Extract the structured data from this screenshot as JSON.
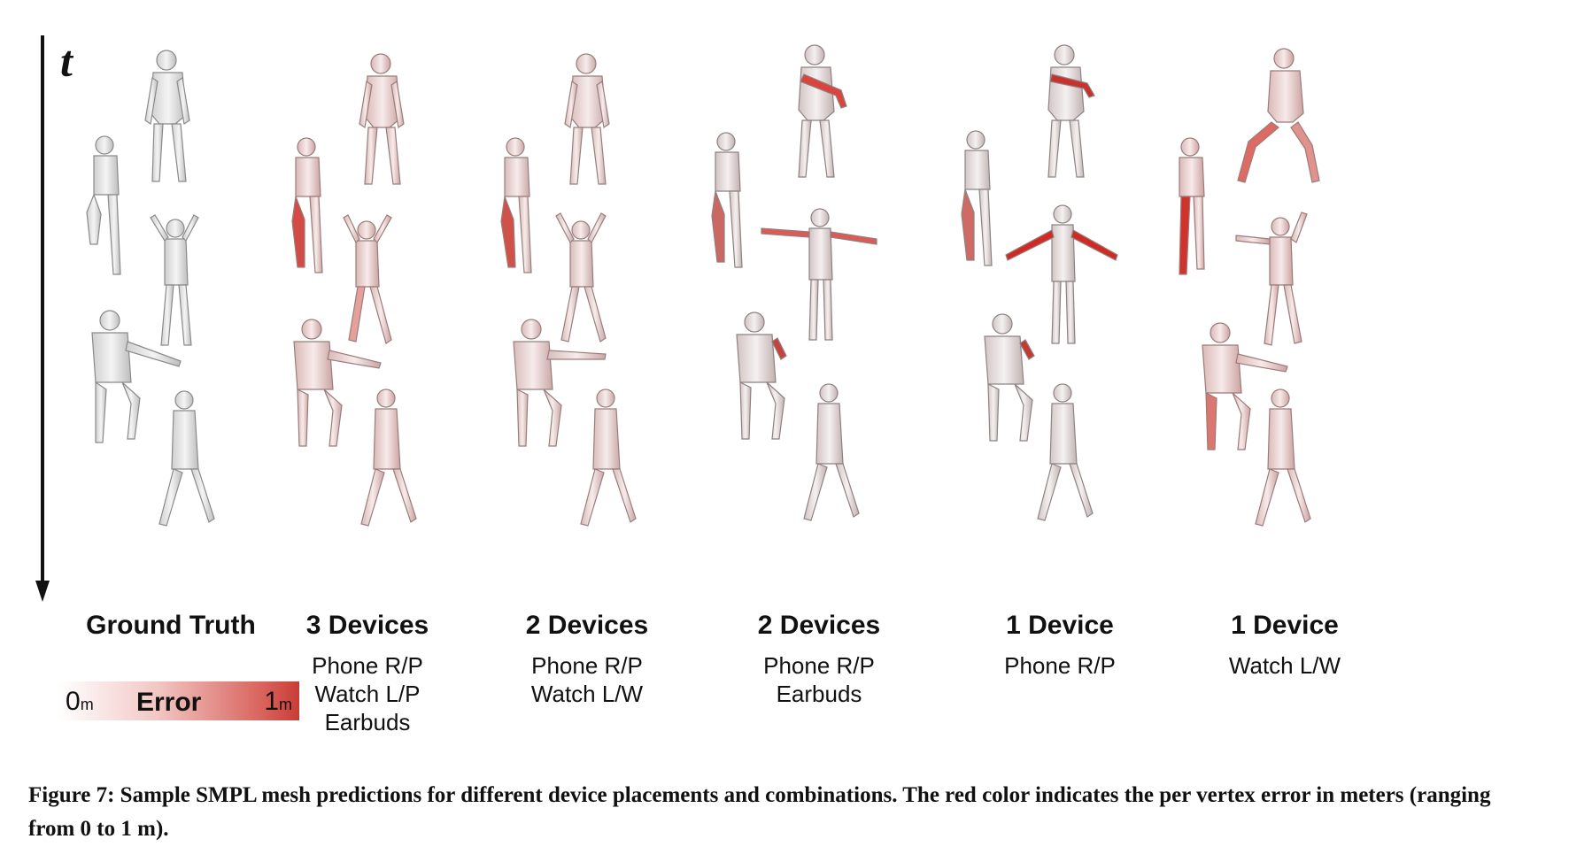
{
  "time_label": "t",
  "columns": [
    {
      "title": "Ground Truth",
      "devices": []
    },
    {
      "title": "3 Devices",
      "devices": [
        "Phone R/P",
        "Watch L/P",
        "Earbuds"
      ]
    },
    {
      "title": "2 Devices",
      "devices": [
        "Phone R/P",
        "Watch L/W"
      ]
    },
    {
      "title": "2 Devices",
      "devices": [
        "Phone R/P",
        "Earbuds"
      ]
    },
    {
      "title": "1 Device",
      "devices": [
        "Phone R/P"
      ]
    },
    {
      "title": "1 Device",
      "devices": [
        "Watch L/W"
      ]
    }
  ],
  "colorbar": {
    "min_value": "0",
    "min_unit": "m",
    "label": "Error",
    "max_value": "1",
    "max_unit": "m",
    "color_low": "#ffffff",
    "color_high": "#c93c36"
  },
  "caption": "Figure 7: Sample SMPL mesh predictions for different device placements and combinations. The red color indicates the per vertex error in meters (ranging from 0 to 1 m)."
}
